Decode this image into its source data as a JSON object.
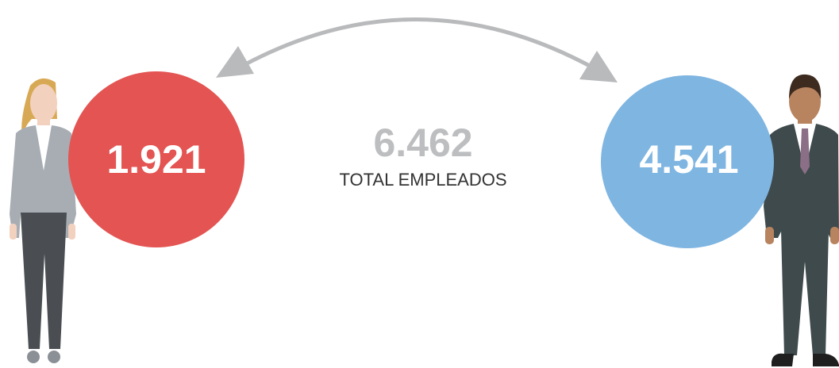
{
  "female": {
    "count": "1.921"
  },
  "male": {
    "count": "4.541"
  },
  "total": {
    "count": "6.462",
    "label": "TOTAL EMPLEADOS"
  }
}
